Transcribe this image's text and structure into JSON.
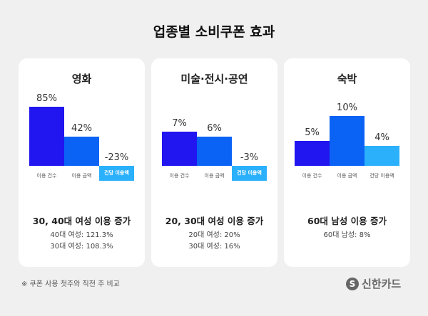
{
  "title": "업종별 소비쿠폰 효과",
  "colors": {
    "건수": "#2115f0",
    "금액": "#0b63f6",
    "건당": "#2bb0fb"
  },
  "chart_data": [
    {
      "type": "bar",
      "title": "영화",
      "categories": [
        "이용 건수",
        "이용 금액",
        "건당 이용액"
      ],
      "values": [
        85,
        42,
        -23
      ],
      "labels": [
        "85%",
        "42%",
        "-23%"
      ],
      "headline": "30, 40대 여성 이용 증가",
      "details": [
        "40대 여성: 121.3%",
        "30대 여성: 108.3%"
      ]
    },
    {
      "type": "bar",
      "title": "미술·전시·공연",
      "categories": [
        "이용 건수",
        "이용 금액",
        "건당 이용액"
      ],
      "values": [
        7,
        6,
        -3
      ],
      "labels": [
        "7%",
        "6%",
        "-3%"
      ],
      "headline": "20, 30대 여성 이용 증가",
      "details": [
        "20대 여성: 20%",
        "30대 여성: 16%"
      ]
    },
    {
      "type": "bar",
      "title": "숙박",
      "categories": [
        "이용 건수",
        "이용 금액",
        "건당 이용액"
      ],
      "values": [
        5,
        10,
        4
      ],
      "labels": [
        "5%",
        "10%",
        "4%"
      ],
      "headline": "60대 남성 이용 증가",
      "details": [
        "60대 남성: 8%"
      ]
    }
  ],
  "footnote": "※ 쿠폰 사용 첫주와 직전 주 비교",
  "logo": {
    "mark": "S",
    "text": "신한카드"
  }
}
